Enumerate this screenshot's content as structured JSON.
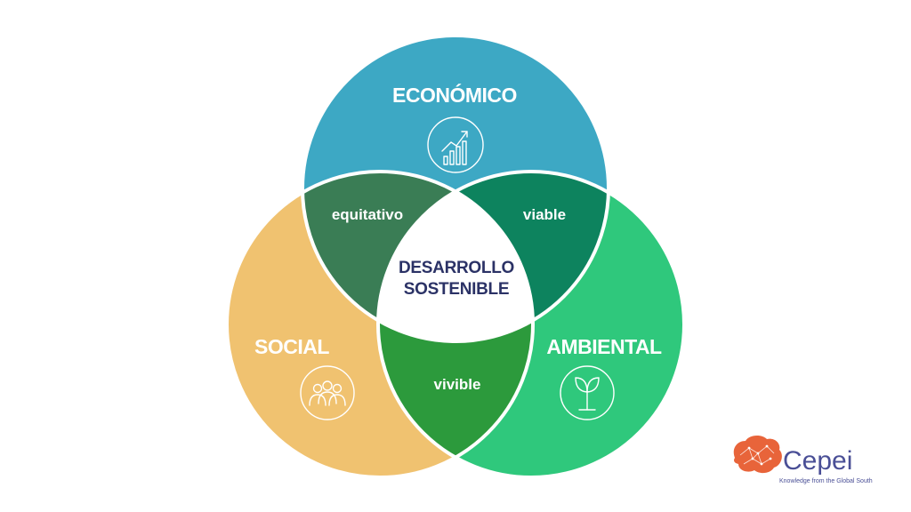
{
  "circles": {
    "economico": {
      "title": "ECONÓMICO",
      "color": "#3da8c4",
      "icon": "growth-chart-icon"
    },
    "social": {
      "title": "SOCIAL",
      "color": "#f0c270",
      "icon": "people-group-icon"
    },
    "ambiental": {
      "title": "AMBIENTAL",
      "color": "#2fc87c",
      "icon": "plant-icon"
    }
  },
  "overlaps": {
    "economico_social": {
      "label": "equitativo",
      "color": "#3a7d55"
    },
    "economico_ambiental": {
      "label": "viable",
      "color": "#0d835e"
    },
    "social_ambiental": {
      "label": "vivible",
      "color": "#2c9a3c"
    }
  },
  "center": {
    "line1": "DESARROLLO",
    "line2": "SOSTENIBLE",
    "color": "#ffffff",
    "text_color": "#2b3266"
  },
  "logo": {
    "name": "Cepei",
    "tagline": "Knowledge from the Global South",
    "brain_color": "#e8643a",
    "text_color": "#4a4f96"
  }
}
